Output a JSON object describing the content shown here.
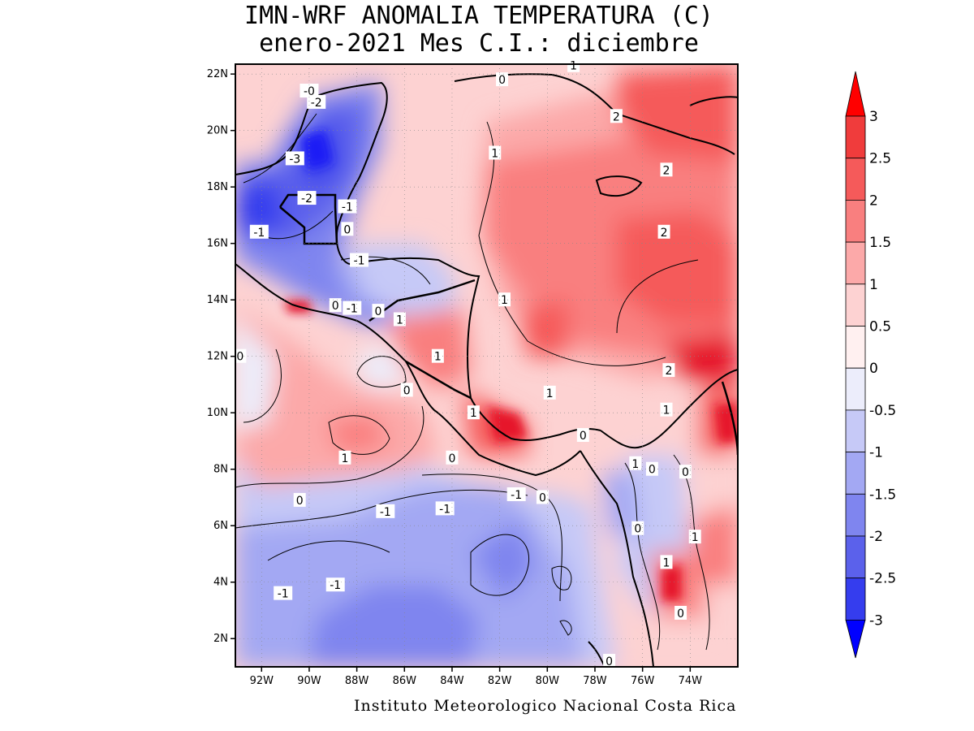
{
  "title_line1": "IMN-WRF  ANOMALIA TEMPERATURA (C)",
  "title_line2": "enero-2021 Mes C.I.: diciembre",
  "footer": "Instituto Meteorologico Nacional Costa Rica",
  "lat_labels": [
    "22N",
    "20N",
    "18N",
    "16N",
    "14N",
    "12N",
    "10N",
    "8N",
    "6N",
    "4N",
    "2N"
  ],
  "lon_labels": [
    "92W",
    "90W",
    "88W",
    "86W",
    "84W",
    "82W",
    "80W",
    "78W",
    "76W",
    "74W"
  ],
  "colorbar": {
    "labels": [
      "3",
      "2.5",
      "2",
      "1.5",
      "1",
      "0.5",
      "0",
      "-0.5",
      "-1",
      "-1.5",
      "-2",
      "-2.5",
      "-3"
    ],
    "colors": [
      "#e6192b",
      "#f03c3c",
      "#f55a5a",
      "#f97f7f",
      "#fca9a9",
      "#fdd2d2",
      "#fff0f0",
      "#ecedfb",
      "#c6c9f7",
      "#a3a8f3",
      "#7f85ef",
      "#5b61eb",
      "#353dee",
      "#1d1df5"
    ],
    "arrow_top_color": "#ff0000",
    "arrow_bottom_color": "#0000ff"
  },
  "contour_labels": [
    {
      "t": "-0",
      "lon": -90.0,
      "lat": 21.4
    },
    {
      "t": "-2",
      "lon": -89.7,
      "lat": 21.0
    },
    {
      "t": "-3",
      "lon": -90.6,
      "lat": 19.0
    },
    {
      "t": "-2",
      "lon": -90.1,
      "lat": 17.6
    },
    {
      "t": "-1",
      "lon": -88.4,
      "lat": 17.3
    },
    {
      "t": "0",
      "lon": -88.4,
      "lat": 16.5
    },
    {
      "t": "-1",
      "lon": -92.1,
      "lat": 16.4
    },
    {
      "t": "-1",
      "lon": -87.9,
      "lat": 15.4
    },
    {
      "t": "0",
      "lon": -88.9,
      "lat": 13.8
    },
    {
      "t": "-1",
      "lon": -88.2,
      "lat": 13.7
    },
    {
      "t": "0",
      "lon": -87.1,
      "lat": 13.6
    },
    {
      "t": "1",
      "lon": -86.2,
      "lat": 13.3
    },
    {
      "t": "1",
      "lon": -84.6,
      "lat": 12.0
    },
    {
      "t": "0",
      "lon": -92.9,
      "lat": 12.0
    },
    {
      "t": "0",
      "lon": -85.9,
      "lat": 10.8
    },
    {
      "t": "1",
      "lon": -83.1,
      "lat": 10.0
    },
    {
      "t": "1",
      "lon": -88.5,
      "lat": 8.4
    },
    {
      "t": "0",
      "lon": -84.0,
      "lat": 8.4
    },
    {
      "t": "0",
      "lon": -90.4,
      "lat": 6.9
    },
    {
      "t": "-1",
      "lon": -86.8,
      "lat": 6.5
    },
    {
      "t": "-1",
      "lon": -84.3,
      "lat": 6.6
    },
    {
      "t": "-1",
      "lon": -81.3,
      "lat": 7.1
    },
    {
      "t": "0",
      "lon": -80.2,
      "lat": 7.0
    },
    {
      "t": "0",
      "lon": -78.5,
      "lat": 9.2
    },
    {
      "t": "-1",
      "lon": -91.1,
      "lat": 3.6
    },
    {
      "t": "-1",
      "lon": -88.9,
      "lat": 3.9
    },
    {
      "t": "1",
      "lon": -79.9,
      "lat": 10.7
    },
    {
      "t": "1",
      "lon": -81.8,
      "lat": 14.0
    },
    {
      "t": "1",
      "lon": -82.2,
      "lat": 19.2
    },
    {
      "t": "2",
      "lon": -77.1,
      "lat": 20.5
    },
    {
      "t": "2",
      "lon": -75.0,
      "lat": 18.6
    },
    {
      "t": "2",
      "lon": -75.1,
      "lat": 16.4
    },
    {
      "t": "2",
      "lon": -74.9,
      "lat": 11.5
    },
    {
      "t": "1",
      "lon": -75.0,
      "lat": 10.1
    },
    {
      "t": "1",
      "lon": -76.3,
      "lat": 8.2
    },
    {
      "t": "0",
      "lon": -75.6,
      "lat": 8.0
    },
    {
      "t": "0",
      "lon": -74.2,
      "lat": 7.9
    },
    {
      "t": "1",
      "lon": -73.8,
      "lat": 5.6
    },
    {
      "t": "1",
      "lon": -75.0,
      "lat": 4.7
    },
    {
      "t": "0",
      "lon": -76.2,
      "lat": 5.9
    },
    {
      "t": "0",
      "lon": -74.4,
      "lat": 2.9
    },
    {
      "t": "0",
      "lon": -77.4,
      "lat": 1.2
    },
    {
      "t": "0",
      "lon": -81.9,
      "lat": 21.8
    },
    {
      "t": "1",
      "lon": -78.9,
      "lat": 22.3
    }
  ]
}
